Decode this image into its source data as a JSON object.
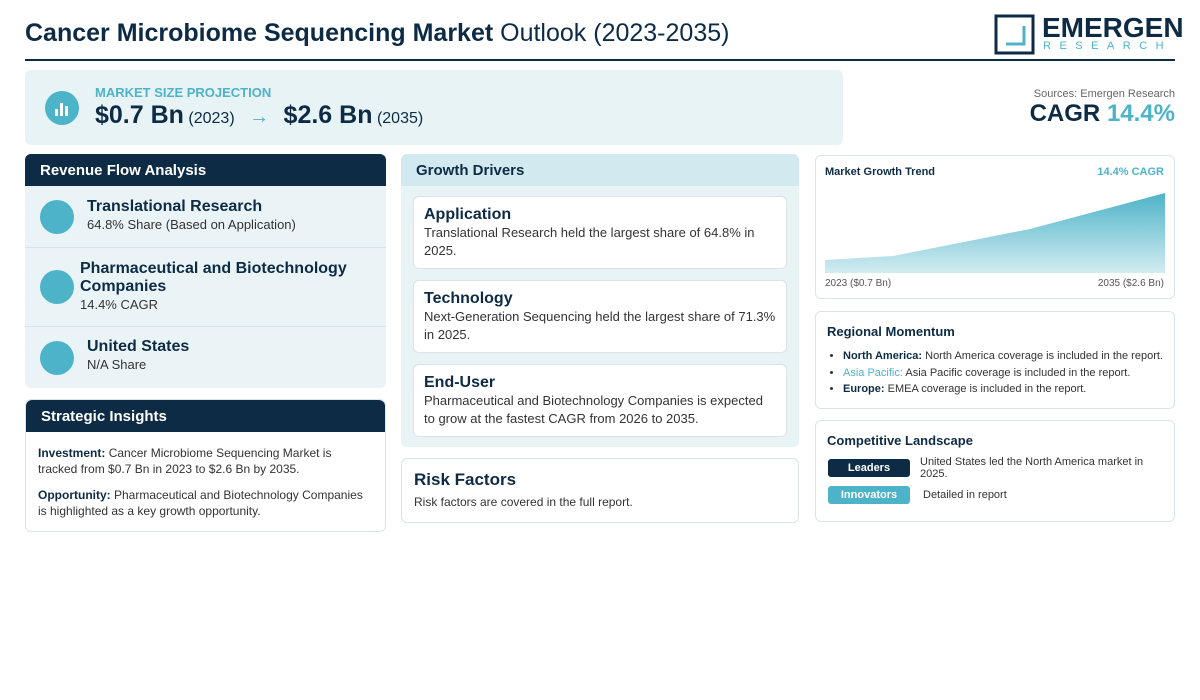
{
  "header": {
    "title_bold": "Cancer Microbiome Sequencing Market",
    "title_rest": "Outlook (2023-2035)",
    "logo_name": "EMERGEN",
    "logo_sub": "RESEARCH"
  },
  "projection": {
    "label": "MARKET SIZE PROJECTION",
    "start_value": "$0.7 Bn",
    "start_year": "(2023)",
    "arrow": "→",
    "end_value": "$2.6 Bn",
    "end_year": "(2035)"
  },
  "summary": {
    "source": "Sources: Emergen Research",
    "cagr_label": "CAGR",
    "cagr_value": "14.4%"
  },
  "revenue_flow": {
    "title": "Revenue Flow Analysis",
    "items": [
      {
        "name": "Translational Research",
        "detail": "64.8% Share (Based on Application)"
      },
      {
        "name": "Pharmaceutical and Biotechnology Companies",
        "detail": "14.4% CAGR"
      },
      {
        "name": "United States",
        "detail": "N/A Share"
      }
    ]
  },
  "strategic_insights": {
    "title": "Strategic Insights",
    "items": [
      {
        "label": "Investment:",
        "text": "Cancer Microbiome Sequencing Market is tracked from $0.7 Bn in 2023 to $2.6 Bn by 2035."
      },
      {
        "label": "Opportunity:",
        "text": "Pharmaceutical and Biotechnology Companies is highlighted as a key growth opportunity."
      }
    ]
  },
  "growth_drivers": {
    "title": "Growth Drivers",
    "cards": [
      {
        "title": "Application",
        "text": "Translational Research held the largest share of 64.8% in 2025."
      },
      {
        "title": "Technology",
        "text": "Next-Generation Sequencing held the largest share of 71.3% in 2025."
      },
      {
        "title": "End-User",
        "text": "Pharmaceutical and Biotechnology Companies is expected to grow at the fastest CAGR from 2026 to 2035."
      }
    ]
  },
  "risk_factors": {
    "title": "Risk Factors",
    "text": "Risk factors are covered in the full report."
  },
  "growth_trend": {
    "title": "Market Growth Trend",
    "badge": "14.4% CAGR",
    "start_label": "2023 ($0.7 Bn)",
    "end_label": "2035 ($2.6 Bn)"
  },
  "regional_momentum": {
    "title": "Regional Momentum",
    "items": [
      {
        "region": "North America:",
        "text": "North America coverage is included in the report."
      },
      {
        "region": "Asia Pacific:",
        "text": "Asia Pacific coverage is included in the report."
      },
      {
        "region": "Europe:",
        "text": "EMEA coverage is included in the report."
      }
    ]
  },
  "competitive_landscape": {
    "title": "Competitive Landscape",
    "rows": [
      {
        "tag": "Leaders",
        "text": "United States led the North America market in 2025."
      },
      {
        "tag": "Innovators",
        "text": "Detailed in report"
      }
    ]
  }
}
